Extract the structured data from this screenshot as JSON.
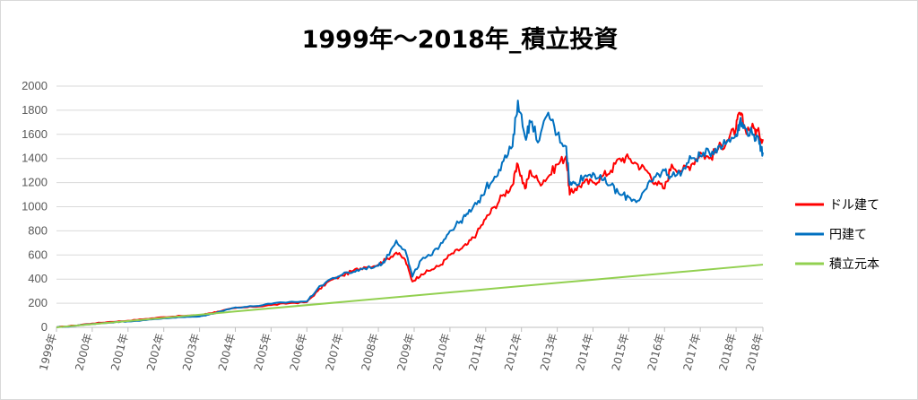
{
  "chart_data": {
    "type": "line",
    "title": "1999年〜2018年_積立投資",
    "xlabel": "",
    "ylabel": "",
    "ylim": [
      0,
      2000
    ],
    "yticks": [
      0,
      200,
      400,
      600,
      800,
      1000,
      1200,
      1400,
      1600,
      1800,
      2000
    ],
    "xlim": [
      1999.0,
      2018.75
    ],
    "categories": [
      "1999年",
      "2000年",
      "2001年",
      "2002年",
      "2003年",
      "2004年",
      "2005年",
      "2006年",
      "2007年",
      "2008年",
      "2009年",
      "2010年",
      "2011年",
      "2012年",
      "2013年",
      "2014年",
      "2015年",
      "2016年",
      "2017年",
      "2018年",
      "2018年"
    ],
    "category_positions": [
      1999.0,
      2000.0,
      2001.0,
      2002.0,
      2003.0,
      2004.0,
      2005.0,
      2006.0,
      2007.0,
      2008.0,
      2009.0,
      2010.0,
      2011.0,
      2012.0,
      2013.0,
      2014.0,
      2015.0,
      2016.0,
      2017.0,
      2018.0,
      2018.75
    ],
    "grid": true,
    "legend_position": "right",
    "series": [
      {
        "name": "ドル建て",
        "color": "#ff0000",
        "x": [
          1999.0,
          1999.5,
          2000.0,
          2000.5,
          2001.0,
          2001.5,
          2002.0,
          2002.5,
          2003.0,
          2003.25,
          2003.5,
          2004.0,
          2004.5,
          2005.0,
          2005.5,
          2006.0,
          2006.3,
          2006.6,
          2007.0,
          2007.3,
          2007.6,
          2008.0,
          2008.2,
          2008.5,
          2008.75,
          2008.95,
          2009.2,
          2009.5,
          2009.75,
          2010.0,
          2010.3,
          2010.5,
          2010.75,
          2011.0,
          2011.25,
          2011.5,
          2011.75,
          2011.9,
          2012.1,
          2012.25,
          2012.5,
          2012.75,
          2013.0,
          2013.25,
          2013.35,
          2013.5,
          2013.75,
          2014.0,
          2014.25,
          2014.5,
          2014.75,
          2015.0,
          2015.25,
          2015.5,
          2015.75,
          2016.0,
          2016.2,
          2016.5,
          2016.75,
          2017.0,
          2017.25,
          2017.5,
          2017.75,
          2018.0,
          2018.1,
          2018.25,
          2018.5,
          2018.65,
          2018.75
        ],
        "values": [
          0,
          15,
          32,
          45,
          55,
          70,
          85,
          95,
          100,
          115,
          130,
          160,
          170,
          185,
          200,
          210,
          300,
          380,
          430,
          470,
          500,
          520,
          560,
          620,
          560,
          380,
          440,
          480,
          520,
          600,
          650,
          690,
          780,
          900,
          1000,
          1100,
          1180,
          1350,
          1150,
          1300,
          1200,
          1250,
          1350,
          1420,
          1100,
          1150,
          1200,
          1200,
          1250,
          1300,
          1400,
          1400,
          1350,
          1300,
          1200,
          1150,
          1350,
          1300,
          1350,
          1450,
          1400,
          1480,
          1550,
          1650,
          1780,
          1650,
          1650,
          1600,
          1560
        ]
      },
      {
        "name": "円建て",
        "color": "#0070c0",
        "x": [
          1999.0,
          1999.5,
          2000.0,
          2000.5,
          2001.0,
          2001.5,
          2002.0,
          2002.5,
          2003.0,
          2003.25,
          2003.5,
          2004.0,
          2004.5,
          2005.0,
          2005.5,
          2006.0,
          2006.3,
          2006.6,
          2007.0,
          2007.3,
          2007.6,
          2008.0,
          2008.2,
          2008.5,
          2008.75,
          2008.95,
          2009.2,
          2009.5,
          2009.75,
          2010.0,
          2010.3,
          2010.5,
          2010.75,
          2011.0,
          2011.25,
          2011.5,
          2011.75,
          2011.9,
          2012.1,
          2012.25,
          2012.5,
          2012.75,
          2013.0,
          2013.25,
          2013.35,
          2013.5,
          2013.75,
          2014.0,
          2014.25,
          2014.5,
          2014.75,
          2015.0,
          2015.25,
          2015.5,
          2015.75,
          2016.0,
          2016.2,
          2016.5,
          2016.75,
          2017.0,
          2017.25,
          2017.5,
          2017.75,
          2018.0,
          2018.1,
          2018.25,
          2018.5,
          2018.65,
          2018.75
        ],
        "values": [
          0,
          12,
          28,
          40,
          50,
          60,
          75,
          85,
          90,
          105,
          125,
          165,
          175,
          195,
          210,
          215,
          320,
          390,
          440,
          460,
          490,
          510,
          560,
          720,
          640,
          420,
          560,
          600,
          700,
          800,
          880,
          940,
          1020,
          1150,
          1250,
          1380,
          1500,
          1880,
          1580,
          1700,
          1550,
          1780,
          1600,
          1500,
          1180,
          1200,
          1250,
          1280,
          1220,
          1180,
          1100,
          1080,
          1050,
          1150,
          1250,
          1300,
          1250,
          1300,
          1400,
          1420,
          1450,
          1500,
          1540,
          1600,
          1700,
          1650,
          1600,
          1520,
          1450
        ]
      },
      {
        "name": "積立元本",
        "color": "#92d050",
        "x": [
          1999.0,
          2018.75
        ],
        "values": [
          0,
          520
        ]
      }
    ]
  }
}
